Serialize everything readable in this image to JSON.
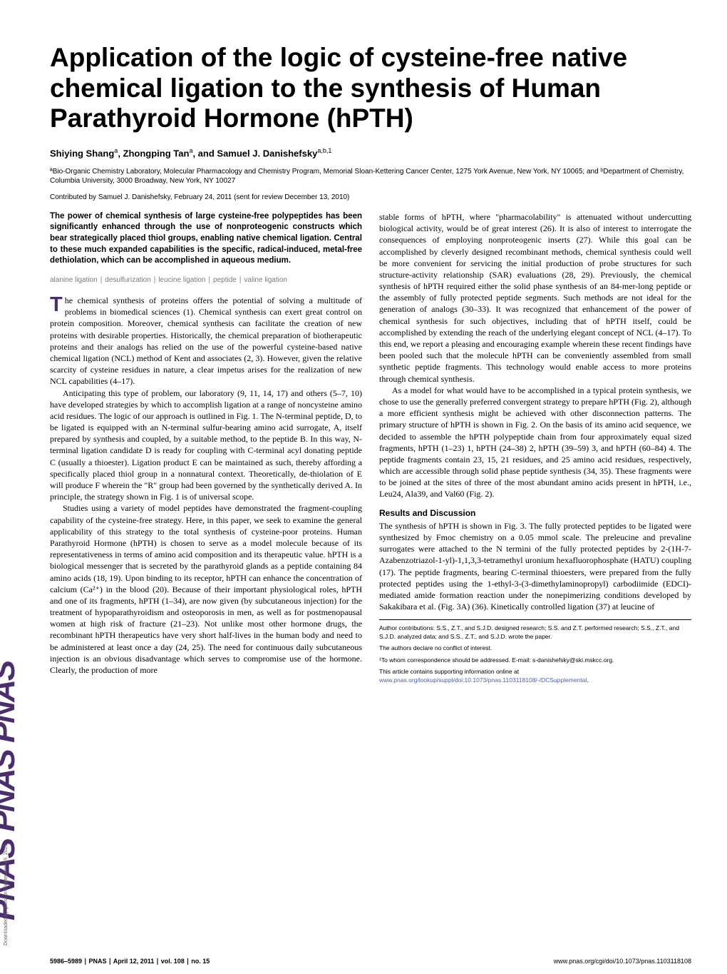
{
  "sidebar": {
    "logo_text": "PNAS  PNAS  PNAS",
    "download_note": "Downloaded by guest on September 29, 2021"
  },
  "title": "Application of the logic of cysteine-free native chemical ligation to the synthesis of Human Parathyroid Hormone (hPTH)",
  "authors_html": "Shiying Shang<sup>a</sup>, Zhongping Tan<sup>a</sup>, and Samuel J. Danishefsky<sup>a,b,1</sup>",
  "affiliations": "ªBio-Organic Chemistry Laboratory, Molecular Pharmacology and Chemistry Program, Memorial Sloan-Kettering Cancer Center, 1275 York Avenue, New York, NY 10065; and ᵇDepartment of Chemistry, Columbia University, 3000 Broadway, New York, NY 10027",
  "contributed": "Contributed by Samuel J. Danishefsky, February 24, 2011 (sent for review December 13, 2010)",
  "abstract": "The power of chemical synthesis of large cysteine-free polypeptides has been significantly enhanced through the use of nonproteogenic constructs which bear strategically placed thiol groups, enabling native chemical ligation. Central to these much expanded capabilities is the specific, radical-induced, metal-free dethiolation, which can be accomplished in aqueous medium.",
  "keywords": "alanine ligation ∣ desulfurization ∣ leucine ligation ∣ peptide ∣ valine ligation",
  "body": {
    "p1_first": "T",
    "p1_rest": "he chemical synthesis of proteins offers the potential of solving a multitude of problems in biomedical sciences (1). Chemical synthesis can exert great control on protein composition. Moreover, chemical synthesis can facilitate the creation of new proteins with desirable properties. Historically, the chemical preparation of biotherapeutic proteins and their analogs has relied on the use of the powerful cysteine-based native chemical ligation (NCL) method of Kent and associates (2, 3). However, given the relative scarcity of cysteine residues in nature, a clear impetus arises for the realization of new NCL capabilities (4–17).",
    "p2": "Anticipating this type of problem, our laboratory (9, 11, 14, 17) and others (5–7, 10) have developed strategies by which to accomplish ligation at a range of noncysteine amino acid residues. The logic of our approach is outlined in Fig. 1. The N-terminal peptide, D, to be ligated is equipped with an N-terminal sulfur-bearing amino acid surrogate, A, itself prepared by synthesis and coupled, by a suitable method, to the peptide B. In this way, N-terminal ligation candidate D is ready for coupling with C-terminal acyl donating peptide C (usually a thioester). Ligation product E can be maintained as such, thereby affording a specifically placed thiol group in a nonnatural context. Theoretically, de-thiolation of E will produce F wherein the \"R\" group had been governed by the synthetically derived A. In principle, the strategy shown in Fig. 1 is of universal scope.",
    "p3": "Studies using a variety of model peptides have demonstrated the fragment-coupling capability of the cysteine-free strategy. Here, in this paper, we seek to examine the general applicability of this strategy to the total synthesis of cysteine-poor proteins. Human Parathyroid Hormone (hPTH) is chosen to serve as a model molecule because of its representativeness in terms of amino acid composition and its therapeutic value. hPTH is a biological messenger that is secreted by the parathyroid glands as a peptide containing 84 amino acids (18, 19). Upon binding to its receptor, hPTH can enhance the concentration of calcium (Ca²⁺) in the blood (20). Because of their important physiological roles, hPTH and one of its fragments, hPTH (1–34), are now given (by subcutaneous injection) for the treatment of hypoparathyroidism and osteoporosis in men, as well as for postmenopausal women at high risk of fracture (21–23). Not unlike most other hormone drugs, the recombinant hPTH therapeutics have very short half-lives in the human body and need to be administered at least once a day (24, 25). The need for continuous daily subcutaneous injection is an obvious disadvantage which serves to compromise use of the hormone. Clearly, the production of more",
    "p4": "stable forms of hPTH, where \"pharmacolability\" is attenuated without undercutting biological activity, would be of great interest (26). It is also of interest to interrogate the consequences of employing nonproteogenic inserts (27). While this goal can be accomplished by cleverly designed recombinant methods, chemical synthesis could well be more convenient for servicing the initial production of probe structures for such structure-activity relationship (SAR) evaluations (28, 29). Previously, the chemical synthesis of hPTH required either the solid phase synthesis of an 84-mer-long peptide or the assembly of fully protected peptide segments. Such methods are not ideal for the generation of analogs (30–33). It was recognized that enhancement of the power of chemical synthesis for such objectives, including that of hPTH itself, could be accomplished by extending the reach of the underlying elegant concept of NCL (4–17). To this end, we report a pleasing and encouraging example wherein these recent findings have been pooled such that the molecule hPTH can be conveniently assembled from small synthetic peptide fragments. This technology would enable access to more proteins through chemical synthesis.",
    "p5": "As a model for what would have to be accomplished in a typical protein synthesis, we chose to use the generally preferred convergent strategy to prepare hPTH (Fig. 2), although a more efficient synthesis might be achieved with other disconnection patterns. The primary structure of hPTH is shown in Fig. 2. On the basis of its amino acid sequence, we decided to assemble the hPTH polypeptide chain from four approximately equal sized fragments, hPTH (1–23) 1, hPTH (24–38) 2, hPTH (39–59) 3, and hPTH (60–84) 4. The peptide fragments contain 23, 15, 21 residues, and 25 amino acid residues, respectively, which are accessible through solid phase peptide synthesis (34, 35). These fragments were to be joined at the sites of three of the most abundant amino acids present in hPTH, i.e., Leu24, Ala39, and Val60 (Fig. 2)."
  },
  "section_head": "Results and Discussion",
  "results_p1": "The synthesis of hPTH is shown in Fig. 3. The fully protected peptides to be ligated were synthesized by Fmoc chemistry on a 0.05 mmol scale. The preleucine and prevaline surrogates were attached to the N termini of the fully protected peptides by 2-(1H-7-Azabenzotriazol-1-yl)-1,1,3,3-tetramethyl uronium hexafluorophosphate (HATU) coupling (17). The peptide fragments, bearing C-terminal thioesters, were prepared from the fully protected peptides using the 1-ethyl-3-(3-dimethylaminopropyl) carbodiimide (EDCI)-mediated amide formation reaction under the nonepimerizing conditions developed by Sakakibara et al. (Fig. 3A) (36). Kinetically controlled ligation (37) at leucine of",
  "footnotes": {
    "author_contrib": "Author contributions: S.S., Z.T., and S.J.D. designed research; S.S. and Z.T. performed research; S.S., Z.T., and S.J.D. analyzed data; and S.S., Z.T., and S.J.D. wrote the paper.",
    "conflict": "The authors declare no conflict of interest.",
    "correspondence": "¹To whom correspondence should be addressed. E-mail: s-danishefsky@ski.mskcc.org.",
    "supplemental": "This article contains supporting information online at ",
    "supplemental_link": "www.pnas.org/lookup/suppl/doi:10.1073/pnas.1103118108/-/DCSupplemental",
    "supplemental_end": "."
  },
  "footer": {
    "left": "5986–5989 ∣ PNAS ∣ April 12, 2011 ∣ vol. 108 ∣ no. 15",
    "right": "www.pnas.org/cgi/doi/10.1073/pnas.1103118108"
  },
  "colors": {
    "accent": "#4a2e6d",
    "link": "#4a5fb0",
    "keyword_gray": "#7a7a7a",
    "background": "#ffffff"
  },
  "fonts": {
    "title_size_pt": 28,
    "body_size_pt": 9,
    "abstract_size_pt": 9,
    "footnote_size_pt": 6.5
  }
}
